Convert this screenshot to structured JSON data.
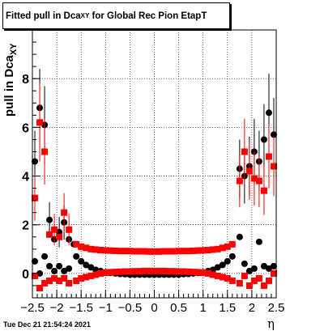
{
  "title": {
    "main": "Fitted pull in Dca",
    "sub": "XY",
    "rest": " for Global Rec Pion EtapT"
  },
  "ylabel": {
    "main": "pull in Dca",
    "sub": "XY"
  },
  "xlabel": "η",
  "timestamp": "Tue Dec 21 21:54:24 2021",
  "colors": {
    "black_series": "#000000",
    "red_series": "#ff0000",
    "grid": "#000000"
  },
  "chart_data": {
    "type": "scatter",
    "title": "Fitted pull in DcaXY for Global Rec Pion EtapT",
    "xlabel": "η",
    "ylabel": "pull in DcaXY",
    "xlim": [
      -2.5,
      2.5
    ],
    "ylim": [
      -1.0,
      10.0
    ],
    "x_ticks": [
      -2.5,
      -2,
      -1.5,
      -1,
      -0.5,
      0,
      0.5,
      1,
      1.5,
      2,
      2.5
    ],
    "x_tick_labels": [
      "−2.5",
      "−2",
      "−1.5",
      "−1",
      "−0.5",
      "0",
      "0.5",
      "1",
      "1.5",
      "2",
      "2.5"
    ],
    "y_ticks": [
      0,
      2,
      4,
      6,
      8
    ],
    "y_tick_labels": [
      "0",
      "2",
      "4",
      "6",
      "8"
    ],
    "grid": true,
    "series": [
      {
        "color": "#000000",
        "marker": "circle",
        "points": [
          [
            -2.45,
            4.6
          ],
          [
            -2.35,
            6.8
          ],
          [
            -2.25,
            6.1
          ],
          [
            -2.15,
            2.2
          ],
          [
            -2.05,
            1.4
          ],
          [
            -1.95,
            1.7
          ],
          [
            -1.85,
            2.1
          ],
          [
            -1.75,
            1.4
          ],
          [
            -1.65,
            1.2
          ],
          [
            -2.45,
            0.5
          ],
          [
            -2.35,
            0.0
          ],
          [
            -2.25,
            0.7
          ],
          [
            -2.15,
            0.3
          ],
          [
            -2.05,
            0.1
          ],
          [
            -1.95,
            0.3
          ],
          [
            -1.85,
            0.1
          ],
          [
            -1.75,
            0.2
          ],
          [
            -1.6,
            0.7
          ],
          [
            -1.5,
            0.5
          ],
          [
            -1.4,
            0.35
          ],
          [
            -1.3,
            0.25
          ],
          [
            -1.2,
            0.15
          ],
          [
            -1.1,
            0.1
          ],
          [
            -1.0,
            0.05
          ],
          [
            -0.9,
            0.02
          ],
          [
            -0.8,
            0.0
          ],
          [
            -0.7,
            -0.02
          ],
          [
            -0.6,
            -0.03
          ],
          [
            -0.5,
            -0.05
          ],
          [
            -0.4,
            -0.05
          ],
          [
            -0.3,
            -0.05
          ],
          [
            -0.2,
            -0.05
          ],
          [
            -0.1,
            -0.05
          ],
          [
            0.0,
            -0.05
          ],
          [
            0.1,
            -0.05
          ],
          [
            0.2,
            -0.05
          ],
          [
            0.3,
            -0.05
          ],
          [
            0.4,
            -0.05
          ],
          [
            0.5,
            -0.05
          ],
          [
            0.6,
            -0.03
          ],
          [
            0.7,
            -0.02
          ],
          [
            0.8,
            0.0
          ],
          [
            0.9,
            0.02
          ],
          [
            1.0,
            0.05
          ],
          [
            1.1,
            0.1
          ],
          [
            1.2,
            0.15
          ],
          [
            1.3,
            0.25
          ],
          [
            1.4,
            0.35
          ],
          [
            1.5,
            0.5
          ],
          [
            1.6,
            0.7
          ],
          [
            1.75,
            1.5
          ],
          [
            1.85,
            0.4
          ],
          [
            1.95,
            0.1
          ],
          [
            2.05,
            0.2
          ],
          [
            2.15,
            1.3
          ],
          [
            2.25,
            0.3
          ],
          [
            2.35,
            0.2
          ],
          [
            2.45,
            0.3
          ],
          [
            1.75,
            4.3
          ],
          [
            1.85,
            4.0
          ],
          [
            1.95,
            4.4
          ],
          [
            2.05,
            5.0
          ],
          [
            2.15,
            4.6
          ],
          [
            2.25,
            5.5
          ],
          [
            2.35,
            6.6
          ],
          [
            2.45,
            5.7
          ]
        ]
      },
      {
        "color": "#ff0000",
        "marker": "square",
        "points": [
          [
            -2.45,
            3.1
          ],
          [
            -2.35,
            6.2
          ],
          [
            -2.25,
            5.0
          ],
          [
            -2.15,
            1.6
          ],
          [
            -2.05,
            1.8
          ],
          [
            -1.95,
            1.5
          ],
          [
            -1.85,
            2.5
          ],
          [
            -1.75,
            1.8
          ],
          [
            -2.45,
            -0.1
          ],
          [
            -2.35,
            -0.6
          ],
          [
            -2.25,
            -0.4
          ],
          [
            -2.15,
            -0.3
          ],
          [
            -2.05,
            -0.2
          ],
          [
            -1.95,
            -0.3
          ],
          [
            -1.85,
            -0.2
          ],
          [
            -1.75,
            -0.4
          ],
          [
            -1.6,
            1.2
          ],
          [
            -1.5,
            1.1
          ],
          [
            -1.4,
            1.05
          ],
          [
            -1.3,
            1.0
          ],
          [
            -1.2,
            0.98
          ],
          [
            -1.1,
            0.96
          ],
          [
            -1.0,
            0.95
          ],
          [
            -0.9,
            0.94
          ],
          [
            -0.8,
            0.93
          ],
          [
            -0.7,
            0.92
          ],
          [
            -0.6,
            0.92
          ],
          [
            -0.5,
            0.92
          ],
          [
            -0.4,
            0.91
          ],
          [
            -0.3,
            0.91
          ],
          [
            -0.2,
            0.91
          ],
          [
            -0.1,
            0.9
          ],
          [
            0.0,
            0.9
          ],
          [
            0.1,
            0.9
          ],
          [
            0.2,
            0.91
          ],
          [
            0.3,
            0.91
          ],
          [
            0.4,
            0.91
          ],
          [
            0.5,
            0.92
          ],
          [
            0.6,
            0.92
          ],
          [
            0.7,
            0.92
          ],
          [
            0.8,
            0.93
          ],
          [
            0.9,
            0.94
          ],
          [
            1.0,
            0.95
          ],
          [
            1.1,
            0.96
          ],
          [
            1.2,
            0.98
          ],
          [
            1.3,
            1.0
          ],
          [
            1.4,
            1.05
          ],
          [
            1.5,
            1.1
          ],
          [
            1.6,
            1.2
          ],
          [
            -1.6,
            -0.3
          ],
          [
            -1.5,
            -0.2
          ],
          [
            -1.4,
            -0.15
          ],
          [
            -1.3,
            -0.1
          ],
          [
            -1.2,
            -0.05
          ],
          [
            -1.1,
            0.0
          ],
          [
            -1.0,
            0.03
          ],
          [
            -0.9,
            0.05
          ],
          [
            -0.8,
            0.06
          ],
          [
            -0.7,
            0.07
          ],
          [
            -0.6,
            0.08
          ],
          [
            -0.5,
            0.08
          ],
          [
            -0.4,
            0.09
          ],
          [
            -0.3,
            0.09
          ],
          [
            -0.2,
            0.1
          ],
          [
            -0.1,
            0.1
          ],
          [
            0.0,
            0.1
          ],
          [
            0.1,
            0.1
          ],
          [
            0.2,
            0.1
          ],
          [
            0.3,
            0.09
          ],
          [
            0.4,
            0.09
          ],
          [
            0.5,
            0.08
          ],
          [
            0.6,
            0.08
          ],
          [
            0.7,
            0.07
          ],
          [
            0.8,
            0.06
          ],
          [
            0.9,
            0.05
          ],
          [
            1.0,
            0.03
          ],
          [
            1.1,
            0.0
          ],
          [
            1.2,
            -0.05
          ],
          [
            1.3,
            -0.1
          ],
          [
            1.4,
            -0.15
          ],
          [
            1.5,
            -0.2
          ],
          [
            1.6,
            -0.3
          ],
          [
            1.75,
            -0.4
          ],
          [
            1.85,
            -0.1
          ],
          [
            1.95,
            -0.5
          ],
          [
            2.05,
            -0.3
          ],
          [
            2.15,
            -0.2
          ],
          [
            2.25,
            -0.5
          ],
          [
            2.35,
            -0.3
          ],
          [
            2.45,
            0.0
          ],
          [
            1.75,
            3.8
          ],
          [
            1.85,
            5.0
          ],
          [
            1.95,
            4.2
          ],
          [
            2.05,
            3.9
          ],
          [
            2.15,
            3.8
          ],
          [
            2.25,
            3.4
          ],
          [
            2.35,
            4.8
          ],
          [
            2.45,
            4.4
          ]
        ]
      }
    ]
  }
}
